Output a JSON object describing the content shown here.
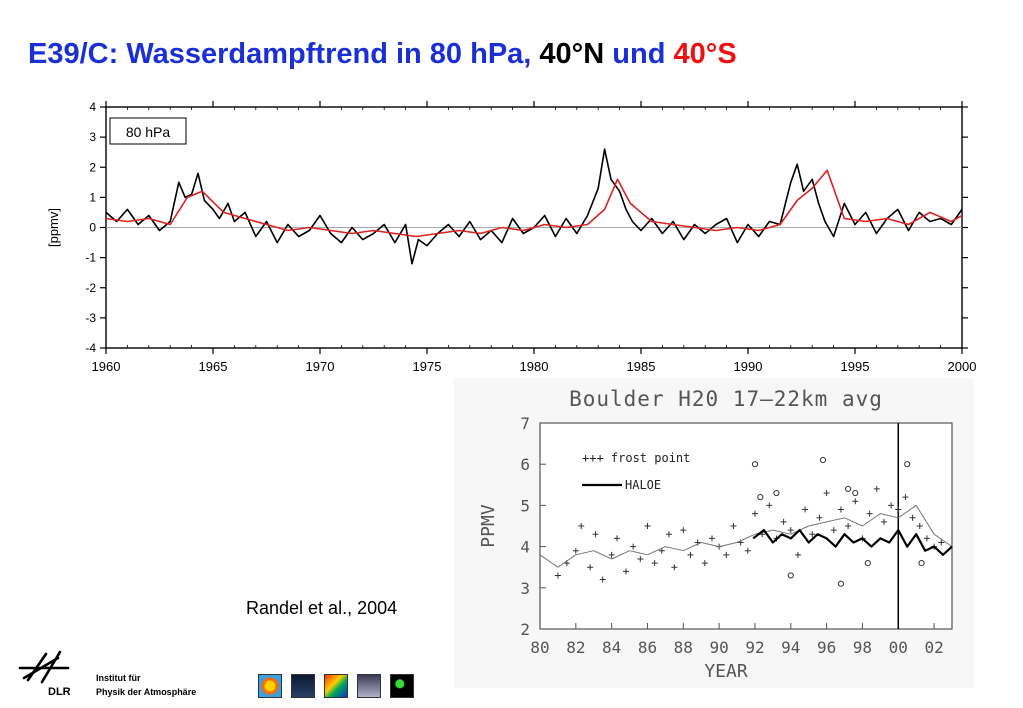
{
  "title": {
    "part1": "E39/C: Wasserdampftrend in 80 hPa,",
    "part2": "40°N",
    "part3": "und",
    "part4": "40°S",
    "colors": {
      "part1": "#1a2fd6",
      "part2": "#000000",
      "part3": "#1a2fd6",
      "part4": "#ee1111"
    }
  },
  "citation": "Randel et al., 2004",
  "institute": {
    "line1": "Institut für",
    "line2": "Physik der Atmosphäre",
    "logo_text": "DLR"
  },
  "thumbnails": [
    "globe-thumbnail-icon",
    "aircraft-thumbnail-icon",
    "colormap-thumbnail-icon",
    "cloud-thumbnail-icon",
    "satellite-thumbnail-icon"
  ],
  "chart_data": [
    {
      "type": "line",
      "title": "",
      "annotation": "80 hPa",
      "xlabel": "",
      "ylabel": "[ppmv]",
      "xlim": [
        1960,
        2000
      ],
      "ylim": [
        -4,
        4
      ],
      "xticks": [
        1960,
        1965,
        1970,
        1975,
        1980,
        1985,
        1990,
        1995,
        2000
      ],
      "yticks": [
        -4,
        -3,
        -2,
        -1,
        0,
        1,
        2,
        3,
        4
      ],
      "zero_line": true,
      "series": [
        {
          "color": "#000000",
          "x": [
            1960,
            1960.5,
            1961,
            1961.5,
            1962,
            1962.5,
            1963,
            1963.4,
            1963.7,
            1964,
            1964.3,
            1964.6,
            1965,
            1965.3,
            1965.7,
            1966,
            1966.5,
            1967,
            1967.5,
            1968,
            1968.5,
            1969,
            1969.5,
            1970,
            1970.5,
            1971,
            1971.5,
            1972,
            1972.5,
            1973,
            1973.5,
            1974,
            1974.3,
            1974.6,
            1975,
            1975.5,
            1976,
            1976.5,
            1977,
            1977.5,
            1978,
            1978.5,
            1979,
            1979.5,
            1980,
            1980.5,
            1981,
            1981.5,
            1982,
            1982.5,
            1983,
            1983.3,
            1983.6,
            1984,
            1984.3,
            1984.6,
            1985,
            1985.5,
            1986,
            1986.5,
            1987,
            1987.5,
            1988,
            1988.5,
            1989,
            1989.5,
            1990,
            1990.5,
            1991,
            1991.5,
            1992,
            1992.3,
            1992.6,
            1993,
            1993.3,
            1993.6,
            1994,
            1994.5,
            1995,
            1995.5,
            1996,
            1996.5,
            1997,
            1997.5,
            1998,
            1998.5,
            1999,
            1999.5,
            2000
          ],
          "y": [
            0.5,
            0.2,
            0.6,
            0.1,
            0.4,
            -0.1,
            0.2,
            1.5,
            1.0,
            1.1,
            1.8,
            0.9,
            0.6,
            0.3,
            0.8,
            0.2,
            0.5,
            -0.3,
            0.2,
            -0.5,
            0.1,
            -0.3,
            -0.1,
            0.4,
            -0.2,
            -0.5,
            0.0,
            -0.4,
            -0.2,
            0.1,
            -0.5,
            0.1,
            -1.2,
            -0.4,
            -0.6,
            -0.2,
            0.1,
            -0.3,
            0.2,
            -0.4,
            -0.1,
            -0.5,
            0.3,
            -0.2,
            0.0,
            0.4,
            -0.3,
            0.3,
            -0.2,
            0.4,
            1.3,
            2.6,
            1.6,
            1.2,
            0.6,
            0.2,
            -0.1,
            0.3,
            -0.2,
            0.2,
            -0.4,
            0.1,
            -0.2,
            0.1,
            0.3,
            -0.5,
            0.1,
            -0.3,
            0.2,
            0.1,
            1.5,
            2.1,
            1.2,
            1.6,
            0.8,
            0.2,
            -0.3,
            0.8,
            0.1,
            0.5,
            -0.2,
            0.3,
            0.6,
            -0.1,
            0.5,
            0.2,
            0.3,
            0.1,
            0.6
          ]
        },
        {
          "color": "#dd2222",
          "x": [
            1960,
            1961,
            1962,
            1963,
            1963.8,
            1964.5,
            1965.5,
            1966.5,
            1967.5,
            1968.5,
            1969.5,
            1970.5,
            1971.5,
            1972.5,
            1973.5,
            1974.5,
            1975.5,
            1976.5,
            1977.5,
            1978.5,
            1979.5,
            1980.5,
            1981.5,
            1982.5,
            1983.3,
            1983.9,
            1984.5,
            1985.5,
            1986.5,
            1987.5,
            1988.5,
            1989.5,
            1990.5,
            1991.5,
            1992.3,
            1993,
            1993.7,
            1994.5,
            1995.5,
            1996.5,
            1997.5,
            1998.5,
            1999.5,
            2000
          ],
          "y": [
            0.3,
            0.2,
            0.3,
            0.1,
            1.0,
            1.2,
            0.5,
            0.3,
            0.1,
            -0.1,
            0.0,
            -0.1,
            -0.2,
            -0.1,
            -0.2,
            -0.3,
            -0.2,
            -0.1,
            -0.2,
            0.0,
            -0.1,
            0.1,
            0.0,
            0.1,
            0.6,
            1.6,
            0.8,
            0.2,
            0.1,
            0.0,
            -0.1,
            0.0,
            -0.1,
            0.1,
            0.9,
            1.3,
            1.9,
            0.3,
            0.2,
            0.3,
            0.1,
            0.5,
            0.2,
            0.4
          ]
        }
      ]
    },
    {
      "type": "line",
      "title": "Boulder H20   17–22km avg",
      "xlabel": "YEAR",
      "ylabel": "PPMV",
      "xlim": [
        80,
        103
      ],
      "ylim": [
        2,
        7
      ],
      "xticks": [
        80,
        82,
        84,
        86,
        88,
        90,
        92,
        94,
        96,
        98,
        0,
        2
      ],
      "yticks": [
        2,
        3,
        4,
        5,
        6,
        7
      ],
      "vertical_line_at": 100,
      "legend": [
        "+++ frost point",
        "HALOE"
      ],
      "legend_placement": "top-left",
      "series": [
        {
          "name": "frost point",
          "style": "plus-markers",
          "x": [
            81,
            81.5,
            82,
            82.3,
            82.8,
            83.1,
            83.5,
            84,
            84.3,
            84.8,
            85.2,
            85.6,
            86,
            86.4,
            86.8,
            87.2,
            87.5,
            88,
            88.4,
            88.8,
            89.2,
            89.6,
            90,
            90.4,
            90.8,
            91.2,
            91.6,
            92,
            92.4,
            92.8,
            93.2,
            93.6,
            94,
            94.4,
            94.8,
            95.2,
            95.6,
            96,
            96.4,
            96.8,
            97.2,
            97.6,
            98,
            98.4,
            98.8,
            99.2,
            99.6,
            100,
            100.4,
            100.8,
            101.2,
            101.6,
            102,
            102.4
          ],
          "y": [
            3.3,
            3.6,
            3.9,
            4.5,
            3.5,
            4.3,
            3.2,
            3.8,
            4.2,
            3.4,
            4.0,
            3.7,
            4.5,
            3.6,
            3.9,
            4.3,
            3.5,
            4.4,
            3.8,
            4.1,
            3.6,
            4.2,
            4.0,
            3.8,
            4.5,
            4.1,
            3.9,
            4.8,
            4.3,
            5.0,
            4.2,
            4.6,
            4.4,
            3.8,
            4.9,
            4.3,
            4.7,
            5.3,
            4.4,
            4.9,
            4.5,
            5.1,
            4.2,
            4.8,
            5.4,
            4.6,
            5.0,
            4.9,
            5.2,
            4.7,
            4.5,
            4.2,
            4.0,
            4.1
          ]
        },
        {
          "name": "frost point (outliers)",
          "style": "circle-markers",
          "x": [
            92,
            92.3,
            93.2,
            94,
            95.8,
            96.8,
            97.2,
            97.6,
            98.3,
            100.5,
            101.3
          ],
          "y": [
            6.0,
            5.2,
            5.3,
            3.3,
            6.1,
            3.1,
            5.4,
            5.3,
            3.6,
            6.0,
            3.6
          ]
        },
        {
          "name": "frost point (smoothed)",
          "style": "thin-line",
          "x": [
            80,
            81,
            82,
            83,
            84,
            85,
            86,
            87,
            88,
            89,
            90,
            91,
            92,
            93,
            94,
            95,
            96,
            97,
            98,
            99,
            100,
            101,
            102,
            103
          ],
          "y": [
            3.8,
            3.5,
            3.8,
            3.9,
            3.7,
            3.9,
            3.8,
            4.0,
            3.9,
            4.1,
            4.0,
            4.1,
            4.3,
            4.4,
            4.3,
            4.5,
            4.6,
            4.7,
            4.5,
            4.8,
            4.7,
            5.0,
            4.3,
            4.0
          ]
        },
        {
          "name": "HALOE",
          "style": "thick-line",
          "x": [
            91.9,
            92.5,
            93,
            93.5,
            94,
            94.5,
            95,
            95.5,
            96,
            96.5,
            97,
            97.5,
            98,
            98.5,
            99,
            99.5,
            100,
            100.5,
            101,
            101.5,
            102,
            102.5,
            103
          ],
          "y": [
            4.2,
            4.4,
            4.1,
            4.3,
            4.2,
            4.4,
            4.1,
            4.3,
            4.2,
            4.0,
            4.3,
            4.1,
            4.2,
            4.0,
            4.2,
            4.1,
            4.4,
            4.0,
            4.3,
            3.9,
            4.0,
            3.8,
            4.0
          ]
        }
      ]
    }
  ]
}
